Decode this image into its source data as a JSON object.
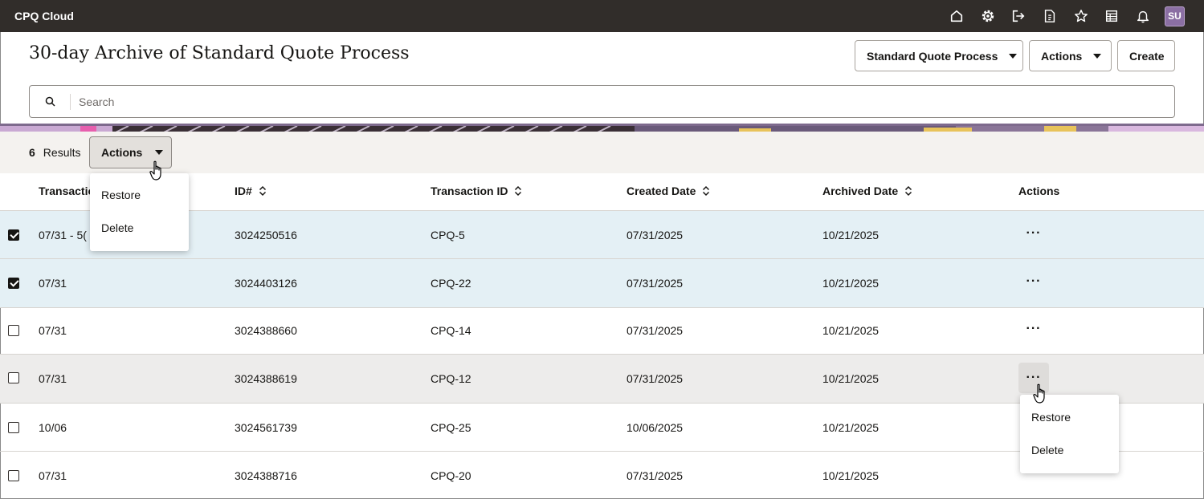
{
  "app": {
    "title": "CPQ Cloud",
    "user_initials": "SU"
  },
  "topbar": {
    "icons": [
      "home-icon",
      "settings-icon",
      "logout-icon",
      "document-icon",
      "favorites-icon",
      "report-icon",
      "notifications-icon"
    ]
  },
  "header": {
    "page_title": "30-day Archive of Standard Quote Process",
    "process_select": "Standard Quote Process",
    "actions_label": "Actions",
    "create_label": "Create"
  },
  "search": {
    "placeholder": "Search",
    "value": ""
  },
  "results": {
    "count": "6",
    "count_label": "Results",
    "actions_label": "Actions",
    "actions_menu": [
      "Restore",
      "Delete"
    ]
  },
  "table": {
    "columns": [
      {
        "label": "Transaction",
        "sortable": false
      },
      {
        "label": "ID#",
        "sortable": true
      },
      {
        "label": "Transaction ID",
        "sortable": true
      },
      {
        "label": "Created Date",
        "sortable": true
      },
      {
        "label": "Archived Date",
        "sortable": true
      },
      {
        "label": "Actions",
        "sortable": false
      }
    ],
    "rows": [
      {
        "checked": true,
        "transaction": "07/31 - 5(",
        "id": "3024250516",
        "transaction_id": "CPQ-5",
        "created": "07/31/2025",
        "archived": "10/21/2025",
        "more": "···"
      },
      {
        "checked": true,
        "transaction": "07/31",
        "id": "3024403126",
        "transaction_id": "CPQ-22",
        "created": "07/31/2025",
        "archived": "10/21/2025",
        "more": "···"
      },
      {
        "checked": false,
        "transaction": "07/31",
        "id": "3024388660",
        "transaction_id": "CPQ-14",
        "created": "07/31/2025",
        "archived": "10/21/2025",
        "more": "···"
      },
      {
        "checked": false,
        "transaction": "07/31",
        "id": "3024388619",
        "transaction_id": "CPQ-12",
        "created": "07/31/2025",
        "archived": "10/21/2025",
        "more": "···"
      },
      {
        "checked": false,
        "transaction": "10/06",
        "id": "3024561739",
        "transaction_id": "CPQ-25",
        "created": "10/06/2025",
        "archived": "10/21/2025",
        "more": "···"
      },
      {
        "checked": false,
        "transaction": "07/31",
        "id": "3024388716",
        "transaction_id": "CPQ-20",
        "created": "07/31/2025",
        "archived": "10/21/2025",
        "more": "···"
      }
    ],
    "row_menu": [
      "Restore",
      "Delete"
    ]
  },
  "colors": {
    "topbar": "#312d2a",
    "selected_row": "#e4f0f5",
    "avatar": "#8b6fa3"
  }
}
